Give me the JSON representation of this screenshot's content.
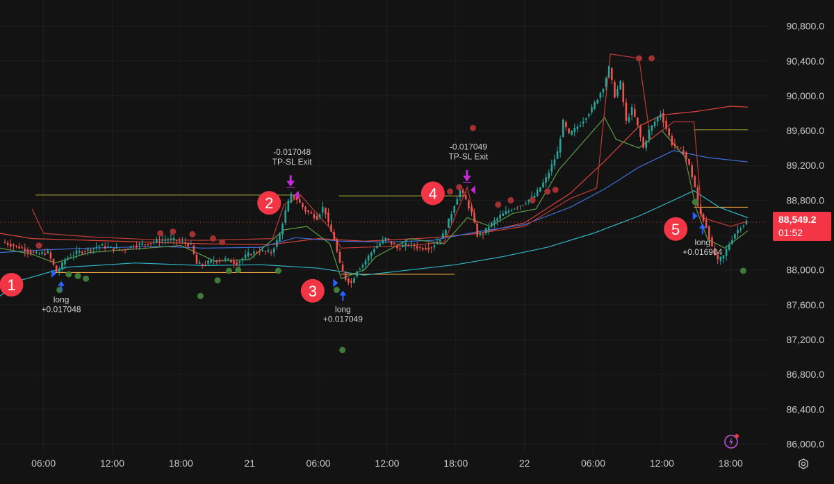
{
  "chart_data": {
    "type": "candlestick",
    "y_axis": {
      "ticks": [
        "90,800.0",
        "90,400.0",
        "90,000.0",
        "89,600.0",
        "89,200.0",
        "88,800.0",
        "88,400.0",
        "88,000.0",
        "87,600.0",
        "87,200.0",
        "86,800.0",
        "86,400.0",
        "86,000.0"
      ],
      "tick_values": [
        90800,
        90400,
        90000,
        89600,
        89200,
        88800,
        88400,
        88000,
        87600,
        87200,
        86800,
        86400,
        86000
      ],
      "ylim": [
        85900,
        91100
      ],
      "side": "right"
    },
    "x_axis": {
      "ticks": [
        "06:00",
        "12:00",
        "18:00",
        "21",
        "06:00",
        "12:00",
        "18:00",
        "22",
        "06:00",
        "12:00",
        "18:00"
      ],
      "tick_hours": [
        6,
        12,
        18,
        24,
        30,
        36,
        42,
        48,
        54,
        60,
        66
      ],
      "xlim": [
        2.2,
        69.2
      ]
    },
    "current_price": {
      "label": "88,549.2",
      "countdown": "01:52",
      "value": 88549.2,
      "color": "#f23645"
    },
    "price_path": [
      [
        2.5,
        88320
      ],
      [
        4,
        88260
      ],
      [
        5.5,
        88180
      ],
      [
        6.5,
        88200
      ],
      [
        7,
        88050
      ],
      [
        7.3,
        87960
      ],
      [
        8,
        88120
      ],
      [
        9,
        88200
      ],
      [
        10,
        88230
      ],
      [
        11,
        88280
      ],
      [
        12,
        88250
      ],
      [
        13,
        88230
      ],
      [
        14,
        88280
      ],
      [
        15,
        88300
      ],
      [
        16,
        88330
      ],
      [
        17,
        88350
      ],
      [
        18,
        88330
      ],
      [
        19,
        88280
      ],
      [
        19.5,
        88070
      ],
      [
        20,
        88060
      ],
      [
        21,
        88110
      ],
      [
        22,
        88120
      ],
      [
        23,
        88080
      ],
      [
        24,
        88180
      ],
      [
        25,
        88220
      ],
      [
        26,
        88200
      ],
      [
        26.7,
        88380
      ],
      [
        27.2,
        88650
      ],
      [
        27.7,
        88860
      ],
      [
        28.2,
        88820
      ],
      [
        29,
        88680
      ],
      [
        30,
        88600
      ],
      [
        30.6,
        88740
      ],
      [
        31,
        88520
      ],
      [
        31.5,
        88350
      ],
      [
        32,
        88060
      ],
      [
        32.5,
        87900
      ],
      [
        33,
        87850
      ],
      [
        33.5,
        88000
      ],
      [
        34,
        88060
      ],
      [
        35,
        88250
      ],
      [
        36,
        88360
      ],
      [
        37,
        88250
      ],
      [
        38,
        88300
      ],
      [
        39,
        88250
      ],
      [
        40,
        88260
      ],
      [
        41,
        88400
      ],
      [
        41.6,
        88600
      ],
      [
        42,
        88750
      ],
      [
        42.5,
        88920
      ],
      [
        43,
        88800
      ],
      [
        43.5,
        88650
      ],
      [
        44,
        88400
      ],
      [
        44.5,
        88420
      ],
      [
        45,
        88500
      ],
      [
        46,
        88620
      ],
      [
        47,
        88700
      ],
      [
        48,
        88760
      ],
      [
        49,
        88850
      ],
      [
        50,
        89050
      ],
      [
        51,
        89350
      ],
      [
        51.5,
        89700
      ],
      [
        52,
        89550
      ],
      [
        53,
        89680
      ],
      [
        54,
        89850
      ],
      [
        55,
        90100
      ],
      [
        55.5,
        90320
      ],
      [
        56,
        90000
      ],
      [
        56.5,
        90150
      ],
      [
        57,
        89700
      ],
      [
        57.5,
        89850
      ],
      [
        58,
        89650
      ],
      [
        58.5,
        89400
      ],
      [
        59,
        89600
      ],
      [
        60,
        89800
      ],
      [
        61,
        89450
      ],
      [
        62,
        89350
      ],
      [
        62.5,
        89200
      ],
      [
        63,
        88950
      ],
      [
        63.3,
        88680
      ],
      [
        63.6,
        88620
      ],
      [
        64,
        88500
      ],
      [
        64.5,
        88250
      ],
      [
        65,
        88100
      ],
      [
        65.5,
        88160
      ],
      [
        66,
        88300
      ],
      [
        66.5,
        88420
      ],
      [
        67,
        88500
      ],
      [
        67.5,
        88549
      ]
    ],
    "indicator_lines": [
      {
        "color": "#e0433a",
        "points": [
          [
            2.2,
            88420
          ],
          [
            5,
            88360
          ],
          [
            10,
            88340
          ],
          [
            15,
            88320
          ],
          [
            20,
            88300
          ],
          [
            26,
            88290
          ],
          [
            27,
            88310
          ],
          [
            30,
            88360
          ],
          [
            34,
            88330
          ],
          [
            40,
            88370
          ],
          [
            44,
            88420
          ],
          [
            48,
            88540
          ],
          [
            52,
            88880
          ],
          [
            55,
            89250
          ],
          [
            58,
            89650
          ],
          [
            60,
            89780
          ],
          [
            63,
            89820
          ],
          [
            66,
            89880
          ],
          [
            67.5,
            89870
          ]
        ]
      },
      {
        "color": "#3f6fd8",
        "points": [
          [
            2.2,
            88200
          ],
          [
            6,
            88230
          ],
          [
            10,
            88250
          ],
          [
            16,
            88270
          ],
          [
            20,
            88250
          ],
          [
            25,
            88260
          ],
          [
            28,
            88370
          ],
          [
            32,
            88330
          ],
          [
            36,
            88320
          ],
          [
            40,
            88340
          ],
          [
            44,
            88440
          ],
          [
            48,
            88520
          ],
          [
            52,
            88720
          ],
          [
            55,
            88930
          ],
          [
            58,
            89180
          ],
          [
            61,
            89370
          ],
          [
            64,
            89290
          ],
          [
            67.5,
            89240
          ]
        ]
      },
      {
        "color": "#2fb6c4",
        "points": [
          [
            2.2,
            87700
          ],
          [
            4,
            87880
          ],
          [
            8,
            88030
          ],
          [
            14,
            88080
          ],
          [
            20,
            88050
          ],
          [
            25,
            88060
          ],
          [
            30,
            88020
          ],
          [
            34,
            87940
          ],
          [
            38,
            88000
          ],
          [
            42,
            88060
          ],
          [
            46,
            88150
          ],
          [
            50,
            88260
          ],
          [
            54,
            88420
          ],
          [
            58,
            88620
          ],
          [
            61,
            88800
          ],
          [
            62.8,
            88910
          ],
          [
            65,
            88720
          ],
          [
            67.5,
            88600
          ]
        ]
      },
      {
        "color": "#5e9c46",
        "points": [
          [
            2.2,
            88250
          ],
          [
            5,
            88180
          ],
          [
            7,
            88080
          ],
          [
            10,
            88200
          ],
          [
            15,
            88250
          ],
          [
            18,
            88280
          ],
          [
            21,
            88100
          ],
          [
            24,
            88120
          ],
          [
            27,
            88460
          ],
          [
            29,
            88500
          ],
          [
            31,
            88300
          ],
          [
            32,
            87900
          ],
          [
            34,
            88000
          ],
          [
            35,
            88150
          ],
          [
            38,
            88360
          ],
          [
            41,
            88300
          ],
          [
            43,
            88600
          ],
          [
            45,
            88500
          ],
          [
            47,
            88650
          ],
          [
            49,
            88700
          ],
          [
            51,
            89150
          ],
          [
            53,
            89450
          ],
          [
            55,
            89750
          ],
          [
            56,
            89500
          ],
          [
            58,
            89400
          ],
          [
            60,
            89600
          ],
          [
            62,
            89300
          ],
          [
            63,
            88700
          ],
          [
            64,
            88350
          ],
          [
            65.5,
            88250
          ],
          [
            67.5,
            88450
          ]
        ]
      },
      {
        "color": "#c13a36",
        "points": [
          [
            5,
            88700
          ],
          [
            6,
            88420
          ],
          [
            10,
            88380
          ],
          [
            15,
            88350
          ],
          [
            20,
            88340
          ],
          [
            26,
            88360
          ],
          [
            27,
            88750
          ],
          [
            28.5,
            88850
          ],
          [
            31,
            88480
          ],
          [
            32,
            88250
          ],
          [
            38,
            88280
          ],
          [
            41,
            88320
          ],
          [
            43,
            88950
          ],
          [
            44,
            88420
          ],
          [
            48,
            88500
          ],
          [
            52,
            88820
          ],
          [
            54.3,
            88940
          ],
          [
            55.5,
            90480
          ],
          [
            58,
            90430
          ],
          [
            59,
            89500
          ],
          [
            61,
            89700
          ],
          [
            62.8,
            89700
          ],
          [
            63.5,
            88600
          ],
          [
            66,
            88500
          ],
          [
            67.5,
            88560
          ]
        ]
      }
    ],
    "horizontal_levels": [
      {
        "value": 88860,
        "from": 5.3,
        "to": 28.5,
        "color": "#8a8a2a"
      },
      {
        "value": 88850,
        "from": 31.8,
        "to": 42.8,
        "color": "#8a8a2a"
      },
      {
        "value": 87970,
        "from": 7,
        "to": 26.5,
        "color": "#e8a33c"
      },
      {
        "value": 87950,
        "from": 32,
        "to": 41.9,
        "color": "#e8a33c"
      },
      {
        "value": 89610,
        "from": 62.8,
        "to": 67.5,
        "color": "#8a8a2a"
      },
      {
        "value": 88720,
        "from": 62.8,
        "to": 67.5,
        "color": "#e8a33c"
      }
    ],
    "signal_dots": [
      {
        "x": 16.2,
        "y": 88420,
        "color": "#a03232"
      },
      {
        "x": 17.3,
        "y": 88440,
        "color": "#a03232"
      },
      {
        "x": 19,
        "y": 88410,
        "color": "#a03232"
      },
      {
        "x": 20.8,
        "y": 88360,
        "color": "#a03232"
      },
      {
        "x": 21.6,
        "y": 88320,
        "color": "#a03232"
      },
      {
        "x": 5.6,
        "y": 88280,
        "color": "#a03232"
      },
      {
        "x": 41.5,
        "y": 88900,
        "color": "#a03232"
      },
      {
        "x": 42.3,
        "y": 88950,
        "color": "#a03232"
      },
      {
        "x": 43.5,
        "y": 89630,
        "color": "#a03232"
      },
      {
        "x": 45.7,
        "y": 88750,
        "color": "#a03232"
      },
      {
        "x": 46.8,
        "y": 88800,
        "color": "#a03232"
      },
      {
        "x": 48.7,
        "y": 88800,
        "color": "#a03232"
      },
      {
        "x": 50,
        "y": 88900,
        "color": "#a03232"
      },
      {
        "x": 50.7,
        "y": 88920,
        "color": "#a03232"
      },
      {
        "x": 58,
        "y": 90430,
        "color": "#a03232"
      },
      {
        "x": 59.1,
        "y": 90430,
        "color": "#a03232"
      },
      {
        "x": 7.4,
        "y": 87770,
        "color": "#3e7a3a"
      },
      {
        "x": 8.2,
        "y": 87950,
        "color": "#3e7a3a"
      },
      {
        "x": 9,
        "y": 87930,
        "color": "#3e7a3a"
      },
      {
        "x": 9.7,
        "y": 87900,
        "color": "#3e7a3a"
      },
      {
        "x": 19.7,
        "y": 87700,
        "color": "#3e7a3a"
      },
      {
        "x": 21.2,
        "y": 87880,
        "color": "#3e7a3a"
      },
      {
        "x": 22.2,
        "y": 87990,
        "color": "#3e7a3a"
      },
      {
        "x": 23,
        "y": 88000,
        "color": "#3e7a3a"
      },
      {
        "x": 26.5,
        "y": 87990,
        "color": "#3e7a3a"
      },
      {
        "x": 31.6,
        "y": 87770,
        "color": "#3e7a3a"
      },
      {
        "x": 32.1,
        "y": 87080,
        "color": "#3e7a3a"
      },
      {
        "x": 62.9,
        "y": 88780,
        "color": "#3e7a3a"
      },
      {
        "x": 67.1,
        "y": 87990,
        "color": "#3e7a3a"
      }
    ],
    "trade_markers": [
      {
        "x": 7.3,
        "y": 87960,
        "type": "long",
        "lines": [
          "long",
          "+0.017048"
        ],
        "color": "#2962ff"
      },
      {
        "x": 31.9,
        "y": 87850,
        "type": "long",
        "lines": [
          "long",
          "+0.017049"
        ],
        "color": "#2962ff"
      },
      {
        "x": 63.3,
        "y": 88620,
        "type": "long",
        "lines": [
          "long",
          "+0.016904"
        ],
        "color": "#2962ff"
      },
      {
        "x": 27.7,
        "y": 88860,
        "type": "exit",
        "lines": [
          "-0.017048",
          "TP-SL Exit"
        ],
        "color": "#c42ad6"
      },
      {
        "x": 43.1,
        "y": 88920,
        "type": "exit",
        "lines": [
          "-0.017049",
          "TP-SL Exit"
        ],
        "color": "#c42ad6"
      }
    ],
    "callouts": [
      {
        "label": "1",
        "x": 3.2,
        "y": 87830
      },
      {
        "label": "2",
        "x": 25.7,
        "y": 88770
      },
      {
        "label": "3",
        "x": 29.5,
        "y": 87760
      },
      {
        "label": "4",
        "x": 40,
        "y": 88880
      },
      {
        "label": "5",
        "x": 61.2,
        "y": 88470
      }
    ]
  },
  "colors": {
    "background": "#131313",
    "grid": "#1f1f1f",
    "axis_text": "#c9c9c9",
    "bull": "#26a69a",
    "bear": "#ef5350",
    "callout": "#f23645"
  },
  "icons": {
    "settings": "gear-icon",
    "flash": "flash-icon"
  }
}
